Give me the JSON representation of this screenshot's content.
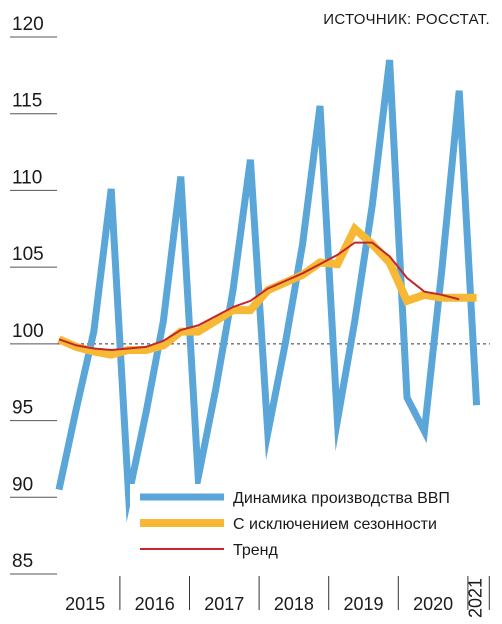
{
  "chart_data": {
    "type": "line",
    "source": "ИСТОЧНИК: РОССТАТ.",
    "categories": [
      "2015",
      null,
      null,
      null,
      "2016",
      null,
      null,
      null,
      "2017",
      null,
      null,
      null,
      "2018",
      null,
      null,
      null,
      "2019",
      null,
      null,
      null,
      "2020",
      null,
      null,
      null,
      "2021"
    ],
    "series": [
      {
        "name": "Динамика производства ВВП",
        "color": "#5ba6d9",
        "values": [
          90.5,
          95.8,
          100.8,
          110.1,
          90.1,
          95.5,
          101.5,
          110.9,
          91.3,
          97.0,
          103.5,
          112.0,
          94.2,
          100.0,
          106.5,
          115.5,
          95.0,
          101.5,
          109.0,
          118.5,
          96.5,
          94.3,
          104.8,
          116.5,
          96.0
        ]
      },
      {
        "name": "С исключением сезонности",
        "color": "#f6b835",
        "values": [
          100.3,
          99.8,
          99.5,
          99.3,
          99.6,
          99.6,
          99.9,
          100.8,
          100.8,
          101.5,
          102.2,
          102.2,
          103.5,
          104.0,
          104.5,
          105.3,
          105.2,
          107.5,
          106.5,
          105.3,
          102.8,
          103.2,
          103.0,
          103.0,
          103.0
        ]
      },
      {
        "name": "Тренд",
        "color": "#c1272d",
        "values": [
          100.3,
          99.9,
          99.7,
          99.6,
          99.7,
          99.8,
          100.2,
          100.9,
          101.2,
          101.8,
          102.4,
          102.8,
          103.6,
          104.1,
          104.6,
          105.2,
          105.8,
          106.6,
          106.6,
          105.7,
          104.3,
          103.4,
          103.2,
          102.9,
          null
        ]
      }
    ],
    "ylim": [
      85,
      120
    ],
    "yticks": [
      85,
      90,
      95,
      100,
      105,
      110,
      115,
      120
    ],
    "reference_line": 100
  }
}
